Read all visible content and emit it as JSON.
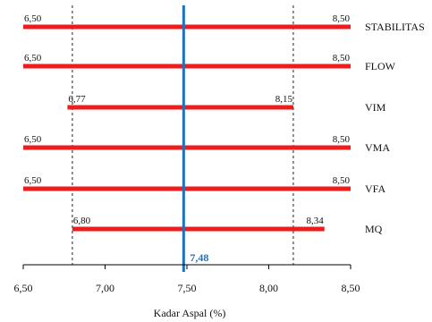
{
  "chart_data": {
    "type": "range-bar",
    "xlabel": "Kadar Aspal (%)",
    "xlim": [
      6.5,
      8.5
    ],
    "xticks": [
      "6,50",
      "7,00",
      "7,50",
      "8,00",
      "8,50"
    ],
    "xtick_values": [
      6.5,
      7.0,
      7.5,
      8.0,
      8.5
    ],
    "series": [
      {
        "name": "STABILITAS",
        "start": 6.5,
        "end": 8.5,
        "start_label": "6,50",
        "end_label": "8,50"
      },
      {
        "name": "FLOW",
        "start": 6.5,
        "end": 8.5,
        "start_label": "6,50",
        "end_label": "8,50"
      },
      {
        "name": "VIM",
        "start": 6.77,
        "end": 8.15,
        "start_label": "6,77",
        "end_label": "8,15"
      },
      {
        "name": "VMA",
        "start": 6.5,
        "end": 8.5,
        "start_label": "6,50",
        "end_label": "8,50"
      },
      {
        "name": "VFA",
        "start": 6.5,
        "end": 8.5,
        "start_label": "6,50",
        "end_label": "8,50"
      },
      {
        "name": "MQ",
        "start": 6.8,
        "end": 8.34,
        "start_label": "6,80",
        "end_label": "8,34"
      }
    ],
    "reference_lines": [
      {
        "value": 6.8,
        "style": "dashed"
      },
      {
        "value": 8.15,
        "style": "dashed"
      }
    ],
    "optimum": {
      "value": 7.48,
      "label": "7,48"
    },
    "grid": false,
    "colors": {
      "bar": "#ee1c1c",
      "optimum": "#1e73be",
      "optimum_label": "#1e73be",
      "axis": "#000000"
    }
  }
}
